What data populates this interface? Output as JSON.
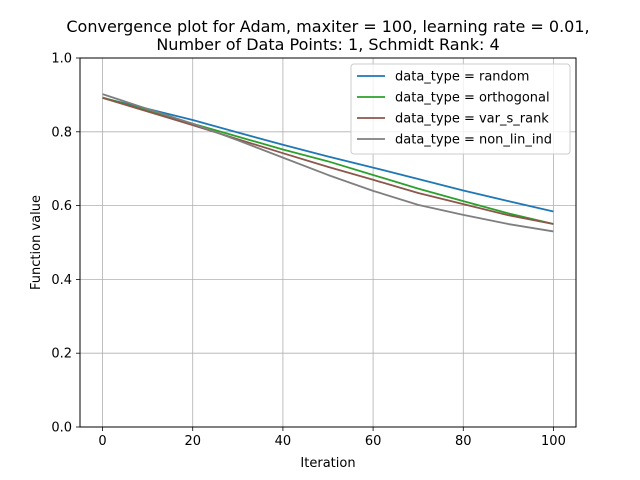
{
  "chart_data": {
    "type": "line",
    "title_line1": "Convergence plot for Adam, maxiter = 100, learning rate = 0.01,",
    "title_line2": "Number of Data Points: 1, Schmidt Rank: 4",
    "xlabel": "Iteration",
    "ylabel": "Function value",
    "xlim": [
      -5,
      105
    ],
    "ylim": [
      0.0,
      1.0
    ],
    "xticks": [
      0,
      20,
      40,
      60,
      80,
      100
    ],
    "yticks": [
      0.0,
      0.2,
      0.4,
      0.6,
      0.8,
      1.0
    ],
    "xtick_labels": [
      "0",
      "20",
      "40",
      "60",
      "80",
      "100"
    ],
    "ytick_labels": [
      "0.0",
      "0.2",
      "0.4",
      "0.6",
      "0.8",
      "1.0"
    ],
    "grid": true,
    "legend_position": "top-right",
    "x": [
      0,
      10,
      20,
      30,
      40,
      50,
      60,
      70,
      80,
      90,
      100
    ],
    "series": [
      {
        "name": "data_type = random",
        "color": "#1f77b4",
        "values": [
          0.892,
          0.862,
          0.832,
          0.798,
          0.765,
          0.733,
          0.703,
          0.672,
          0.641,
          0.612,
          0.584
        ]
      },
      {
        "name": "data_type = orthogonal",
        "color": "#2ca02c",
        "values": [
          0.893,
          0.857,
          0.822,
          0.787,
          0.752,
          0.72,
          0.683,
          0.646,
          0.612,
          0.579,
          0.55
        ]
      },
      {
        "name": "data_type = var_s_rank",
        "color": "#8c564b",
        "values": [
          0.892,
          0.855,
          0.818,
          0.78,
          0.742,
          0.705,
          0.67,
          0.634,
          0.604,
          0.574,
          0.55
        ]
      },
      {
        "name": "data_type = non_lin_ind",
        "color": "#7f7f7f",
        "values": [
          0.902,
          0.862,
          0.822,
          0.777,
          0.73,
          0.683,
          0.64,
          0.602,
          0.575,
          0.55,
          0.53
        ]
      }
    ]
  }
}
